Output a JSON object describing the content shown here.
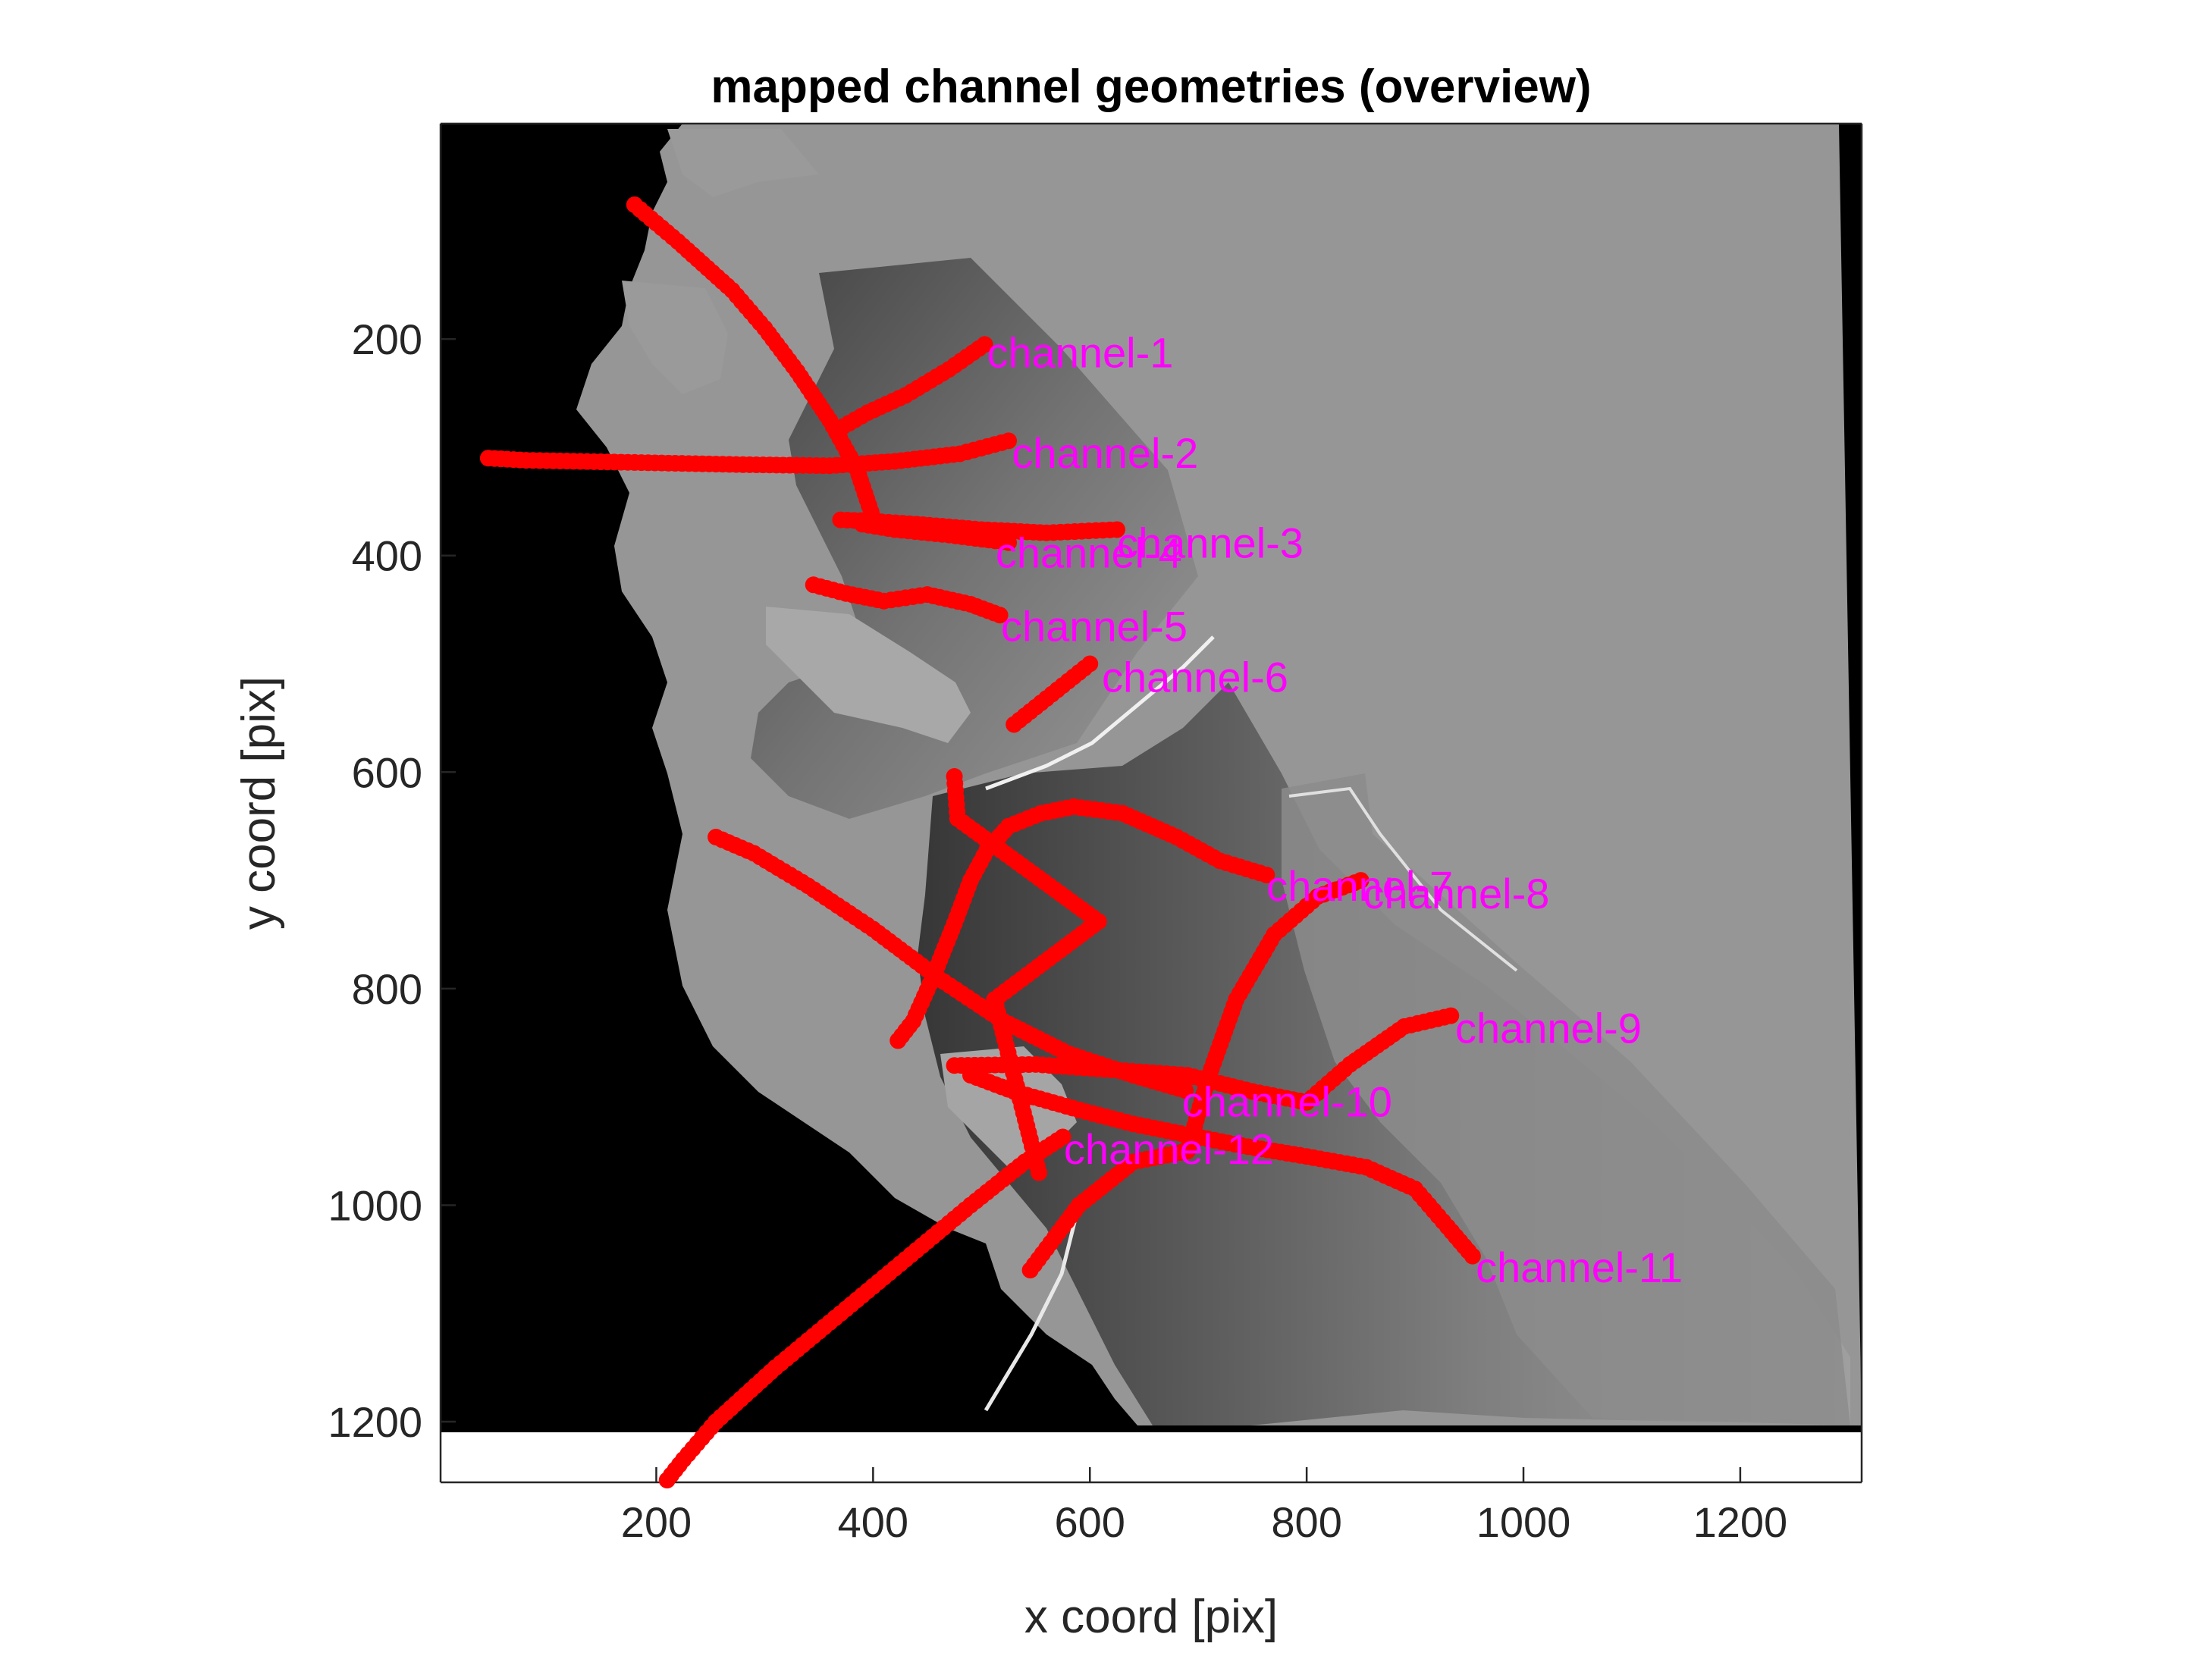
{
  "chart_data": {
    "type": "scatter",
    "title": "mapped channel geometries (overview)",
    "xlabel": "x coord [pix]",
    "ylabel": "y coord [pix]",
    "xlim": [
      1,
      1312
    ],
    "ylim": [
      1,
      1256
    ],
    "y_reversed": true,
    "xticks": [
      200,
      400,
      600,
      800,
      1000,
      1200
    ],
    "yticks": [
      200,
      400,
      600,
      800,
      1000,
      1200
    ],
    "grid": false,
    "background_image": "grayscale elevation raster (black = no data)",
    "marker_color": "#ff0000",
    "label_color": "#ff00ff",
    "series": [
      {
        "name": "channel-1",
        "points": [
          [
            503,
            205
          ],
          [
            470,
            228
          ],
          [
            430,
            252
          ],
          [
            395,
            268
          ],
          [
            372,
            281
          ]
        ],
        "label_at": [
          505,
          212
        ]
      },
      {
        "name": "channel-2",
        "points": [
          [
            525,
            294
          ],
          [
            480,
            306
          ],
          [
            420,
            313
          ],
          [
            360,
            317
          ],
          [
            280,
            316
          ],
          [
            180,
            314
          ],
          [
            80,
            312
          ],
          [
            45,
            310
          ]
        ],
        "label_at": [
          528,
          305
        ]
      },
      {
        "name": "channel-3",
        "points": [
          [
            625,
            376
          ],
          [
            560,
            379
          ],
          [
            500,
            376
          ],
          [
            440,
            371
          ],
          [
            395,
            368
          ],
          [
            370,
            367
          ]
        ],
        "label_at": [
          625,
          388
        ]
      },
      {
        "name": "channel-4",
        "points": [
          [
            525,
            388
          ],
          [
            470,
            381
          ],
          [
            420,
            376
          ],
          [
            390,
            371
          ]
        ],
        "label_at": [
          513,
          397
        ]
      },
      {
        "name": "channel-5",
        "points": [
          [
            517,
            455
          ],
          [
            490,
            445
          ],
          [
            450,
            436
          ],
          [
            410,
            442
          ],
          [
            375,
            435
          ],
          [
            345,
            427
          ]
        ],
        "label_at": [
          518,
          465
        ]
      },
      {
        "name": "channel-6",
        "points": [
          [
            600,
            500
          ],
          [
            575,
            520
          ],
          [
            550,
            540
          ],
          [
            530,
            556
          ]
        ],
        "label_at": [
          611,
          512
        ]
      },
      {
        "name": "channel-7",
        "points": [
          [
            763,
            695
          ],
          [
            720,
            682
          ],
          [
            680,
            660
          ],
          [
            630,
            638
          ],
          [
            585,
            632
          ],
          [
            555,
            638
          ],
          [
            525,
            650
          ],
          [
            505,
            672
          ],
          [
            490,
            700
          ],
          [
            475,
            740
          ],
          [
            455,
            790
          ],
          [
            437,
            830
          ],
          [
            423,
            848
          ]
        ],
        "label_at": [
          763,
          705
        ]
      },
      {
        "name": "channel-8",
        "points": [
          [
            850,
            700
          ],
          [
            810,
            715
          ],
          [
            770,
            750
          ],
          [
            735,
            810
          ],
          [
            710,
            880
          ],
          [
            690,
            950
          ],
          [
            640,
            960
          ],
          [
            590,
            1000
          ],
          [
            560,
            1040
          ],
          [
            545,
            1060
          ]
        ],
        "label_at": [
          852,
          712
        ]
      },
      {
        "name": "channel-9",
        "points": [
          [
            933,
            825
          ],
          [
            890,
            835
          ],
          [
            840,
            870
          ],
          [
            800,
            905
          ],
          [
            750,
            895
          ],
          [
            690,
            880
          ],
          [
            620,
            875
          ],
          [
            550,
            870
          ],
          [
            475,
            871
          ]
        ],
        "label_at": [
          937,
          836
        ]
      },
      {
        "name": "channel-10",
        "points": [
          [
            688,
            894
          ],
          [
            640,
            880
          ],
          [
            580,
            860
          ],
          [
            520,
            830
          ],
          [
            460,
            790
          ],
          [
            400,
            745
          ],
          [
            340,
            705
          ],
          [
            290,
            675
          ],
          [
            255,
            660
          ]
        ],
        "label_at": [
          685,
          904
        ]
      },
      {
        "name": "channel-11",
        "points": [
          [
            953,
            1047
          ],
          [
            930,
            1020
          ],
          [
            900,
            985
          ],
          [
            855,
            965
          ],
          [
            800,
            955
          ],
          [
            740,
            945
          ],
          [
            690,
            935
          ],
          [
            640,
            925
          ],
          [
            590,
            912
          ],
          [
            530,
            895
          ],
          [
            490,
            880
          ]
        ],
        "label_at": [
          956,
          1057
        ]
      },
      {
        "name": "channel-12",
        "points": [
          [
            575,
            937
          ],
          [
            540,
            960
          ],
          [
            490,
            1000
          ],
          [
            430,
            1050
          ],
          [
            370,
            1100
          ],
          [
            310,
            1150
          ],
          [
            255,
            1200
          ],
          [
            225,
            1235
          ],
          [
            210,
            1254
          ]
        ],
        "label_at": [
          576,
          948
        ]
      },
      {
        "name": "",
        "points": [
          [
            180,
            76
          ],
          [
            220,
            110
          ],
          [
            270,
            155
          ],
          [
            300,
            190
          ],
          [
            330,
            230
          ],
          [
            360,
            275
          ],
          [
            385,
            320
          ],
          [
            400,
            365
          ]
        ],
        "label_at": null
      },
      {
        "name": "",
        "points": [
          [
            475,
            604
          ],
          [
            478,
            643
          ],
          [
            608,
            738
          ],
          [
            512,
            810
          ],
          [
            553,
            970
          ]
        ],
        "label_at": null
      }
    ]
  }
}
